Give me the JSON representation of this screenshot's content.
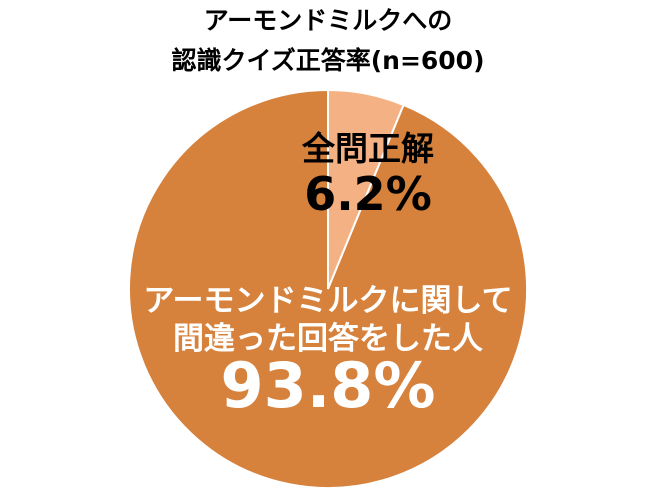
{
  "chart_data": {
    "type": "pie",
    "title": "アーモンドミルクへの\n認識クイズ正答率(n=600)",
    "categories": [
      "全問正解",
      "アーモンドミルクに関して\n間違った回答をした人"
    ],
    "values": [
      6.2,
      93.8
    ],
    "value_labels": [
      "6.2%",
      "93.8%"
    ],
    "colors": [
      "#f4b183",
      "#d6813c"
    ],
    "label_colors": [
      "#000000",
      "#ffffff"
    ]
  }
}
